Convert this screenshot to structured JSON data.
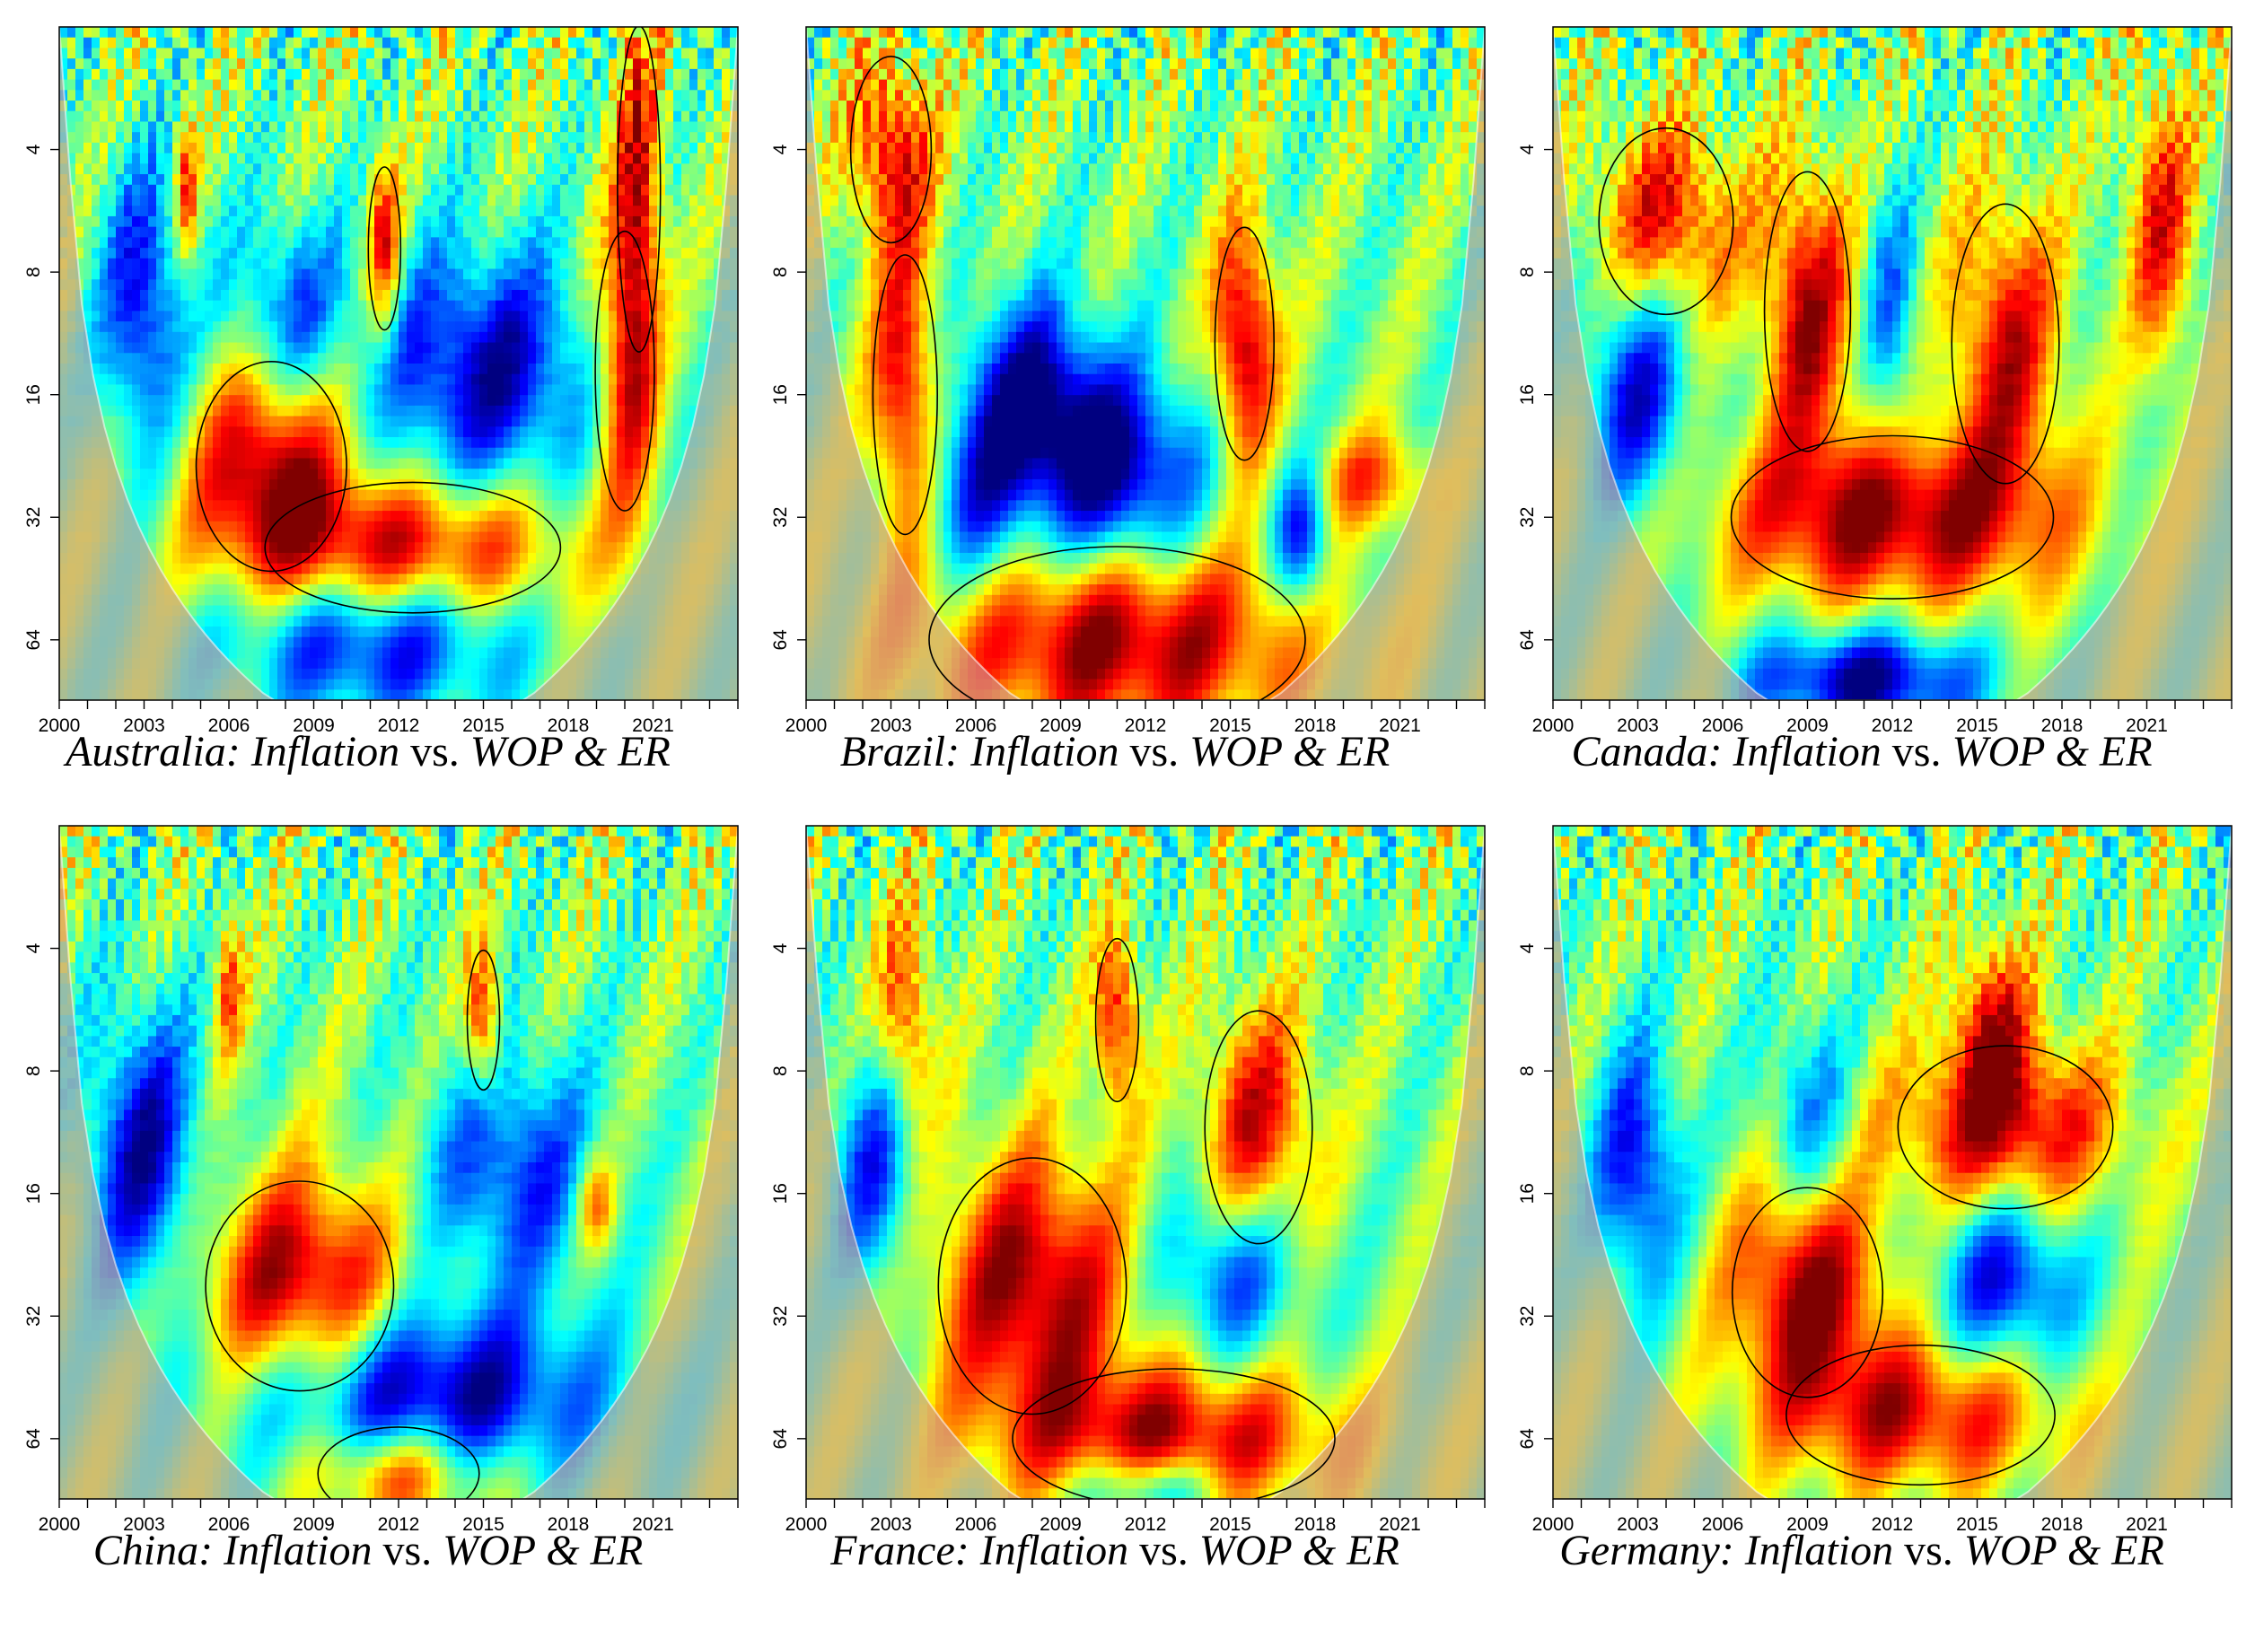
{
  "chart_data": [
    {
      "type": "heatmap",
      "title_parts": {
        "country": "Australia",
        "prefix": ": ",
        "italic1": "Inflation",
        "mid": " vs. ",
        "italic2": "WOP & ER"
      },
      "x_ticks": [
        "2000",
        "2003",
        "2006",
        "2009",
        "2012",
        "2015",
        "2018",
        "2021"
      ],
      "y_ticks": [
        "4",
        "8",
        "16",
        "32",
        "64"
      ],
      "xlim": [
        2000,
        2024
      ],
      "ylim_period": [
        2,
        90
      ],
      "y_scale": "log2",
      "blobs": [
        {
          "x": 2007.5,
          "p": 24,
          "rx": 2.8,
          "rp": 0.45,
          "v": 1.0
        },
        {
          "x": 2012.5,
          "p": 38,
          "rx": 5.5,
          "rp": 0.28,
          "v": 0.9
        },
        {
          "x": 2020,
          "p": 14,
          "rx": 1.1,
          "rp": 0.6,
          "v": 0.9
        },
        {
          "x": 2020.5,
          "p": 5,
          "rx": 0.8,
          "rp": 0.7,
          "v": 0.8
        },
        {
          "x": 2011.5,
          "p": 7,
          "rx": 0.6,
          "rp": 0.35,
          "v": 0.8
        },
        {
          "x": 2004.5,
          "p": 5,
          "rx": 0.4,
          "rp": 0.3,
          "v": 0.7
        },
        {
          "x": 2015,
          "p": 14,
          "rx": 4,
          "rp": 0.5,
          "v": -0.9
        },
        {
          "x": 2003,
          "p": 10,
          "rx": 1.5,
          "rp": 0.6,
          "v": -0.8
        },
        {
          "x": 2011,
          "p": 65,
          "rx": 5,
          "rp": 0.3,
          "v": -0.8
        },
        {
          "x": 2008,
          "p": 10,
          "rx": 2,
          "rp": 0.4,
          "v": -0.6
        }
      ]
    },
    {
      "type": "heatmap",
      "title_parts": {
        "country": "Brazil",
        "prefix": ": ",
        "italic1": "Inflation",
        "mid": " vs. ",
        "italic2": "WOP & ER"
      },
      "x_ticks": [
        "2000",
        "2003",
        "2006",
        "2009",
        "2012",
        "2015",
        "2018",
        "2021"
      ],
      "y_ticks": [
        "4",
        "8",
        "16",
        "32",
        "64"
      ],
      "xlim": [
        2000,
        2024
      ],
      "ylim_period": [
        2,
        90
      ],
      "y_scale": "log2",
      "blobs": [
        {
          "x": 2003.5,
          "p": 16,
          "rx": 1.2,
          "rp": 0.6,
          "v": 0.9
        },
        {
          "x": 2015.5,
          "p": 12,
          "rx": 1.1,
          "rp": 0.5,
          "v": 1.0
        },
        {
          "x": 2011,
          "p": 64,
          "rx": 7,
          "rp": 0.4,
          "v": 1.0
        },
        {
          "x": 2003,
          "p": 4,
          "rx": 1.5,
          "rp": 0.4,
          "v": 0.8
        },
        {
          "x": 2020,
          "p": 26,
          "rx": 2,
          "rp": 0.2,
          "v": 0.6
        },
        {
          "x": 2011,
          "p": 25,
          "rx": 3,
          "rp": 0.4,
          "v": -1.0
        },
        {
          "x": 2008,
          "p": 16,
          "rx": 2.5,
          "rp": 0.4,
          "v": -0.9
        },
        {
          "x": 2017.5,
          "p": 36,
          "rx": 1,
          "rp": 0.3,
          "v": -0.8
        },
        {
          "x": 2006,
          "p": 30,
          "rx": 2,
          "rp": 0.4,
          "v": -0.6
        }
      ]
    },
    {
      "type": "heatmap",
      "title_parts": {
        "country": "Canada",
        "prefix": ": ",
        "italic1": "Inflation",
        "mid": " vs. ",
        "italic2": "WOP & ER"
      },
      "x_ticks": [
        "2000",
        "2003",
        "2006",
        "2009",
        "2012",
        "2015",
        "2018",
        "2021"
      ],
      "y_ticks": [
        "4",
        "8",
        "16",
        "32",
        "64"
      ],
      "xlim": [
        2000,
        2024
      ],
      "ylim_period": [
        2,
        90
      ],
      "y_scale": "log2",
      "blobs": [
        {
          "x": 2012,
          "p": 32,
          "rx": 6,
          "rp": 0.35,
          "v": 1.0
        },
        {
          "x": 2009,
          "p": 10,
          "rx": 1.6,
          "rp": 0.6,
          "v": 0.9
        },
        {
          "x": 2016,
          "p": 12,
          "rx": 2,
          "rp": 0.6,
          "v": 0.8
        },
        {
          "x": 2004,
          "p": 6,
          "rx": 2.5,
          "rp": 0.4,
          "v": 0.8
        },
        {
          "x": 2021.5,
          "p": 6,
          "rx": 1.2,
          "rp": 0.6,
          "v": 0.7
        },
        {
          "x": 2011,
          "p": 80,
          "rx": 4,
          "rp": 0.2,
          "v": -1.0
        },
        {
          "x": 2003,
          "p": 16,
          "rx": 1.8,
          "rp": 0.5,
          "v": -0.8
        },
        {
          "x": 2012,
          "p": 10,
          "rx": 1,
          "rp": 0.5,
          "v": -0.5
        }
      ]
    },
    {
      "type": "heatmap",
      "title_parts": {
        "country": "China",
        "prefix": ": ",
        "italic1": "Inflation",
        "mid": " vs. ",
        "italic2": "WOP & ER"
      },
      "x_ticks": [
        "2000",
        "2003",
        "2006",
        "2009",
        "2012",
        "2015",
        "2018",
        "2021"
      ],
      "y_ticks": [
        "4",
        "8",
        "16",
        "32",
        "64"
      ],
      "xlim": [
        2000,
        2024
      ],
      "ylim_period": [
        2,
        90
      ],
      "y_scale": "log2",
      "blobs": [
        {
          "x": 2008.5,
          "p": 27,
          "rx": 3.5,
          "rp": 0.45,
          "v": 1.0
        },
        {
          "x": 2012,
          "p": 78,
          "rx": 3,
          "rp": 0.2,
          "v": 0.8
        },
        {
          "x": 2015,
          "p": 6,
          "rx": 0.6,
          "rp": 0.3,
          "v": 0.8
        },
        {
          "x": 2019,
          "p": 17,
          "rx": 0.7,
          "rp": 0.2,
          "v": 0.6
        },
        {
          "x": 2006,
          "p": 5,
          "rx": 0.5,
          "rp": 0.3,
          "v": 0.6
        },
        {
          "x": 2013,
          "p": 50,
          "rx": 6,
          "rp": 0.35,
          "v": -1.0
        },
        {
          "x": 2003,
          "p": 13,
          "rx": 2,
          "rp": 0.6,
          "v": -0.9
        },
        {
          "x": 2016,
          "p": 14,
          "rx": 3,
          "rp": 0.5,
          "v": -0.7
        }
      ]
    },
    {
      "type": "heatmap",
      "title_parts": {
        "country": "France",
        "prefix": ": ",
        "italic1": "Inflation",
        "mid": " vs. ",
        "italic2": "WOP & ER"
      },
      "x_ticks": [
        "2000",
        "2003",
        "2006",
        "2009",
        "2012",
        "2015",
        "2018",
        "2021"
      ],
      "y_ticks": [
        "4",
        "8",
        "16",
        "32",
        "64"
      ],
      "xlim": [
        2000,
        2024
      ],
      "ylim_period": [
        2,
        90
      ],
      "y_scale": "log2",
      "blobs": [
        {
          "x": 2008,
          "p": 27,
          "rx": 3.5,
          "rp": 0.55,
          "v": 1.0
        },
        {
          "x": 2013,
          "p": 64,
          "rx": 6,
          "rp": 0.3,
          "v": 0.9
        },
        {
          "x": 2016,
          "p": 11,
          "rx": 2,
          "rp": 0.5,
          "v": 0.8
        },
        {
          "x": 2011,
          "p": 6,
          "rx": 0.8,
          "rp": 0.35,
          "v": 0.8
        },
        {
          "x": 2003.5,
          "p": 6,
          "rx": 1,
          "rp": 0.45,
          "v": 0.7
        },
        {
          "x": 2015,
          "p": 25,
          "rx": 2.5,
          "rp": 0.35,
          "v": -0.7
        },
        {
          "x": 2002.5,
          "p": 14,
          "rx": 1.5,
          "rp": 0.5,
          "v": -0.7
        },
        {
          "x": 2012,
          "p": 85,
          "rx": 2.5,
          "rp": 0.15,
          "v": -0.7
        }
      ]
    },
    {
      "type": "heatmap",
      "title_parts": {
        "country": "Germany",
        "prefix": ": ",
        "italic1": "Inflation",
        "mid": " vs. ",
        "italic2": "WOP & ER"
      },
      "x_ticks": [
        "2000",
        "2003",
        "2006",
        "2009",
        "2012",
        "2015",
        "2018",
        "2021"
      ],
      "y_ticks": [
        "4",
        "8",
        "16",
        "32",
        "64"
      ],
      "xlim": [
        2000,
        2024
      ],
      "ylim_period": [
        2,
        90
      ],
      "y_scale": "log2",
      "blobs": [
        {
          "x": 2009,
          "p": 28,
          "rx": 2.8,
          "rp": 0.45,
          "v": 1.0
        },
        {
          "x": 2016,
          "p": 11,
          "rx": 4,
          "rp": 0.35,
          "v": 0.9
        },
        {
          "x": 2013,
          "p": 56,
          "rx": 5,
          "rp": 0.3,
          "v": 0.8
        },
        {
          "x": 2015.5,
          "p": 6,
          "rx": 1.5,
          "rp": 0.35,
          "v": 0.7
        },
        {
          "x": 2016,
          "p": 26,
          "rx": 2.5,
          "rp": 0.35,
          "v": -0.8
        },
        {
          "x": 2003,
          "p": 14,
          "rx": 1.5,
          "rp": 0.5,
          "v": -0.8
        },
        {
          "x": 2009,
          "p": 10,
          "rx": 1.5,
          "rp": 0.4,
          "v": -0.5
        }
      ]
    }
  ]
}
